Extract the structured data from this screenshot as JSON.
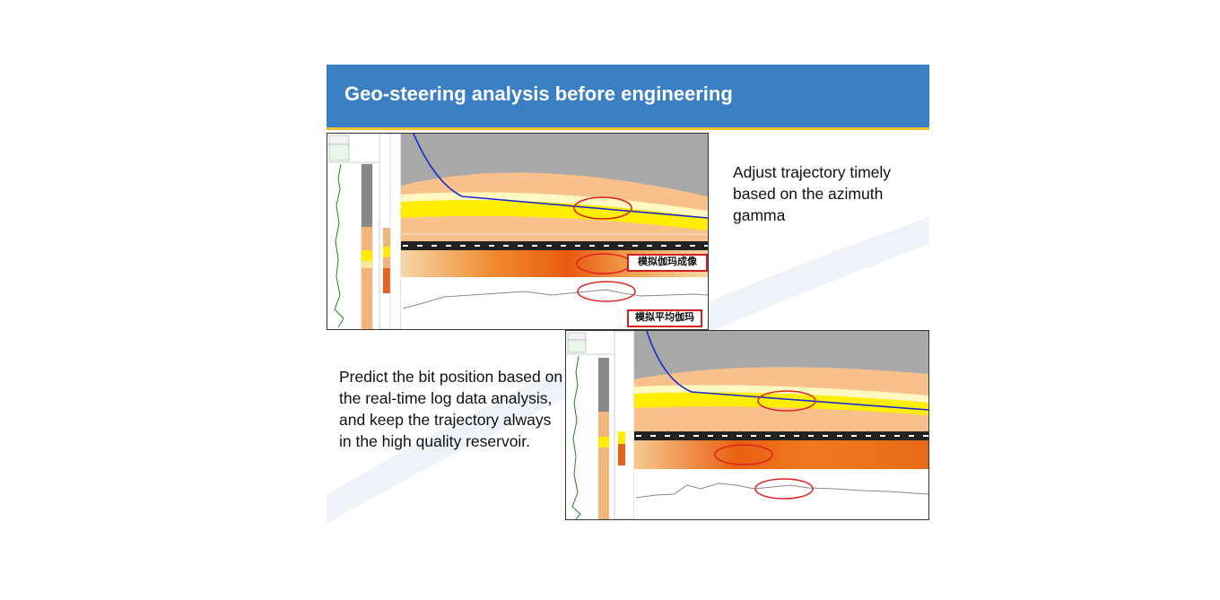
{
  "slide": {
    "title": "Geo-steering analysis before engineering",
    "text_top": "Adjust trajectory timely based on the azimuth gamma",
    "text_bottom": "Predict the bit position based on the real-time log data analysis, and keep the trajectory always in the high quality reservoir."
  },
  "annotations": {
    "image_label": "模拟伽玛成像",
    "average_label": "模拟平均伽玛"
  },
  "colors": {
    "header": "#3a7ec4",
    "header_accent": "#f0c030",
    "reservoir": "#ffee00",
    "layer": "#f8c08a",
    "trajectory": "#1a2bd0",
    "highlight": "#e02020"
  }
}
